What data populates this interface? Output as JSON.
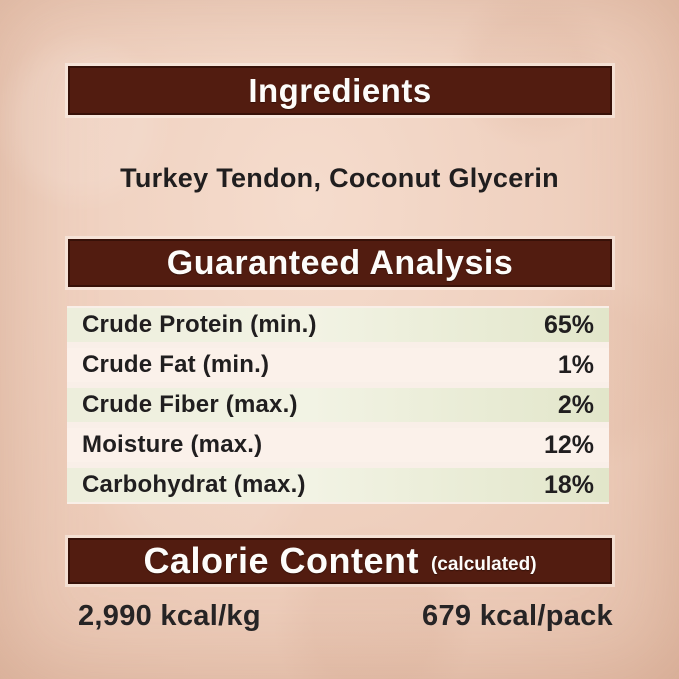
{
  "page": {
    "type": "pet-food-nutrition-label",
    "background_color": "#f0d2c1",
    "accent_brown": "#521c10",
    "row_green": "#e7e9d4",
    "row_light": "#fbf1ea",
    "text_color": "#201e1f",
    "header_text_color": "#fdfcfa"
  },
  "sections": {
    "ingredients": {
      "title": "Ingredients",
      "items": "Turkey Tendon, Coconut Glycerin"
    },
    "guaranteed_analysis": {
      "title": "Guaranteed Analysis",
      "rows": [
        {
          "label": "Crude Protein (min.)",
          "value": "65%"
        },
        {
          "label": "Crude Fat (min.)",
          "value": "1%"
        },
        {
          "label": "Crude Fiber (max.)",
          "value": "2%"
        },
        {
          "label": "Moisture (max.)",
          "value": "12%"
        },
        {
          "label": "Carbohydrat (max.)",
          "value": "18%"
        }
      ]
    },
    "calorie_content": {
      "title": "Calorie Content",
      "subtitle": "(calculated)",
      "per_kg": "2,990 kcal/kg",
      "per_pack": "679 kcal/pack"
    }
  }
}
